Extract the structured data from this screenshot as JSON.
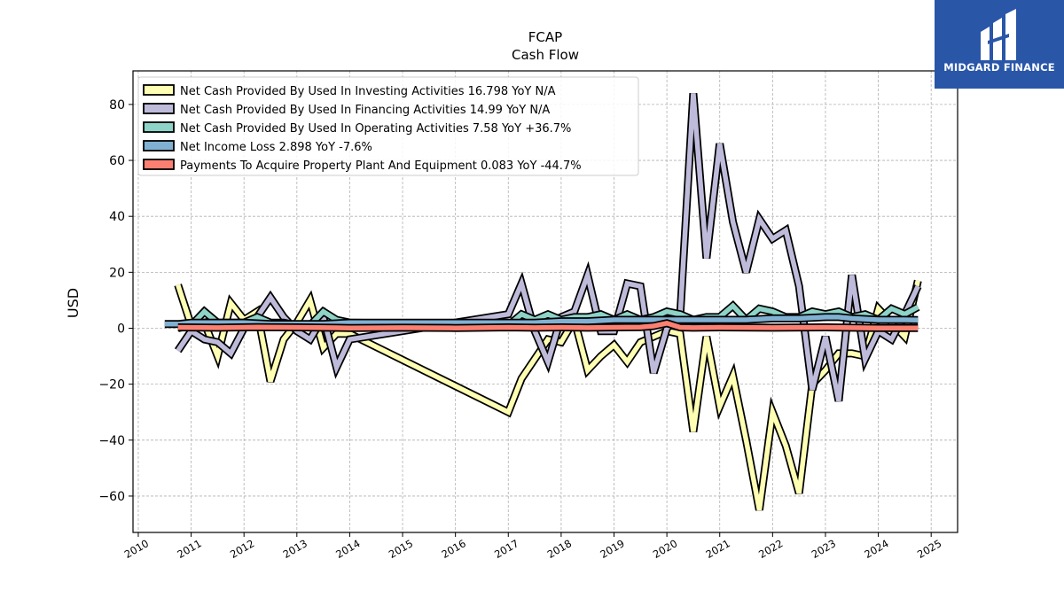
{
  "chart_data": {
    "type": "line",
    "title": "FCAP",
    "subtitle": "Cash Flow",
    "ylabel": "USD",
    "xlabel": "",
    "xlim": [
      2009.9,
      2025.5
    ],
    "ylim": [
      -73,
      92
    ],
    "x_ticks": [
      2010,
      2011,
      2012,
      2013,
      2014,
      2015,
      2016,
      2017,
      2018,
      2019,
      2020,
      2021,
      2022,
      2023,
      2024,
      2025
    ],
    "y_ticks": [
      -60,
      -40,
      -20,
      0,
      20,
      40,
      60,
      80
    ],
    "y_tick_labels": [
      "−60",
      "−40",
      "−20",
      "0",
      "20",
      "40",
      "60",
      "80"
    ],
    "grid": true,
    "legend_position": "top-left",
    "series": [
      {
        "name": "Net Cash Provided By Used In Investing Activities  16.798 YoY N/A",
        "color": "#ffffb3",
        "points": [
          [
            2010.75,
            15.5
          ],
          [
            2011.0,
            1
          ],
          [
            2011.25,
            2
          ],
          [
            2011.5,
            -10
          ],
          [
            2011.75,
            9
          ],
          [
            2012.0,
            3
          ],
          [
            2012.25,
            6
          ],
          [
            2012.5,
            -19
          ],
          [
            2012.75,
            -4
          ],
          [
            2013.0,
            2
          ],
          [
            2013.25,
            10
          ],
          [
            2013.5,
            -7
          ],
          [
            2013.75,
            -2
          ],
          [
            2014.0,
            -2
          ],
          [
            2017.0,
            -30
          ],
          [
            2017.25,
            -18
          ],
          [
            2017.75,
            -4
          ],
          [
            2018.0,
            -5
          ],
          [
            2018.25,
            3
          ],
          [
            2018.5,
            -15
          ],
          [
            2018.75,
            -10
          ],
          [
            2019.0,
            -6
          ],
          [
            2019.25,
            -12
          ],
          [
            2019.5,
            -5
          ],
          [
            2019.75,
            -3
          ],
          [
            2020.0,
            -1
          ],
          [
            2020.25,
            -2
          ],
          [
            2020.5,
            -37
          ],
          [
            2020.75,
            -3
          ],
          [
            2021.0,
            -28
          ],
          [
            2021.25,
            -17
          ],
          [
            2021.5,
            -40
          ],
          [
            2021.75,
            -65
          ],
          [
            2022.0,
            -30
          ],
          [
            2022.25,
            -42
          ],
          [
            2022.5,
            -59
          ],
          [
            2022.75,
            -20
          ],
          [
            2023.0,
            -15
          ],
          [
            2023.25,
            -9
          ],
          [
            2023.5,
            -9
          ],
          [
            2023.75,
            -10
          ],
          [
            2024.0,
            7
          ],
          [
            2024.25,
            2
          ],
          [
            2024.5,
            -3
          ],
          [
            2024.75,
            17
          ]
        ]
      },
      {
        "name": "Net Cash Provided By Used In Financing Activities  14.99 YoY N/A",
        "color": "#bebada",
        "points": [
          [
            2010.75,
            -8
          ],
          [
            2011.0,
            -1
          ],
          [
            2011.25,
            -4
          ],
          [
            2011.5,
            -5
          ],
          [
            2011.75,
            -9
          ],
          [
            2012.0,
            0
          ],
          [
            2012.25,
            4
          ],
          [
            2012.5,
            11
          ],
          [
            2012.75,
            4
          ],
          [
            2013.0,
            -1
          ],
          [
            2013.25,
            -4
          ],
          [
            2013.5,
            4
          ],
          [
            2013.75,
            -14
          ],
          [
            2014.0,
            -4
          ],
          [
            2017.0,
            5
          ],
          [
            2017.25,
            16
          ],
          [
            2017.5,
            -1
          ],
          [
            2017.75,
            -12
          ],
          [
            2018.0,
            4
          ],
          [
            2018.25,
            6
          ],
          [
            2018.5,
            19
          ],
          [
            2018.75,
            -1
          ],
          [
            2019.0,
            -1
          ],
          [
            2019.25,
            16
          ],
          [
            2019.5,
            15
          ],
          [
            2019.75,
            -16
          ],
          [
            2020.0,
            0
          ],
          [
            2020.25,
            4
          ],
          [
            2020.5,
            84
          ],
          [
            2020.75,
            25
          ],
          [
            2021.0,
            66
          ],
          [
            2021.25,
            38
          ],
          [
            2021.5,
            20
          ],
          [
            2021.75,
            39
          ],
          [
            2022.0,
            32
          ],
          [
            2022.25,
            35
          ],
          [
            2022.5,
            15
          ],
          [
            2022.75,
            -22
          ],
          [
            2023.0,
            -3
          ],
          [
            2023.25,
            -26
          ],
          [
            2023.5,
            19
          ],
          [
            2023.75,
            -11
          ],
          [
            2024.0,
            -1
          ],
          [
            2024.25,
            -4
          ],
          [
            2024.5,
            5
          ],
          [
            2024.75,
            15
          ]
        ]
      },
      {
        "name": "Net Cash Provided By Used In Operating Activities  7.58 YoY +36.7%",
        "color": "#8dd3c7",
        "points": [
          [
            2010.75,
            0
          ],
          [
            2011.0,
            1
          ],
          [
            2011.25,
            6
          ],
          [
            2011.5,
            2
          ],
          [
            2011.75,
            2
          ],
          [
            2012.0,
            2
          ],
          [
            2012.25,
            4
          ],
          [
            2012.5,
            2
          ],
          [
            2012.75,
            2
          ],
          [
            2013.0,
            1
          ],
          [
            2013.25,
            1
          ],
          [
            2013.5,
            6
          ],
          [
            2013.75,
            3
          ],
          [
            2014.0,
            2
          ],
          [
            2017.0,
            1
          ],
          [
            2017.25,
            5
          ],
          [
            2017.5,
            3
          ],
          [
            2017.75,
            5
          ],
          [
            2018.0,
            3
          ],
          [
            2018.25,
            4
          ],
          [
            2018.5,
            4
          ],
          [
            2018.75,
            5
          ],
          [
            2019.0,
            3
          ],
          [
            2019.25,
            5
          ],
          [
            2019.5,
            3
          ],
          [
            2019.75,
            4
          ],
          [
            2020.0,
            6
          ],
          [
            2020.25,
            5
          ],
          [
            2020.5,
            3
          ],
          [
            2020.75,
            4
          ],
          [
            2021.0,
            4
          ],
          [
            2021.25,
            8
          ],
          [
            2021.5,
            3
          ],
          [
            2021.75,
            7
          ],
          [
            2022.0,
            6
          ],
          [
            2022.25,
            4
          ],
          [
            2022.5,
            4
          ],
          [
            2022.75,
            6
          ],
          [
            2023.0,
            5
          ],
          [
            2023.25,
            6
          ],
          [
            2023.5,
            4
          ],
          [
            2023.75,
            5
          ],
          [
            2024.0,
            3
          ],
          [
            2024.25,
            7
          ],
          [
            2024.5,
            5
          ],
          [
            2024.75,
            7.58
          ]
        ]
      },
      {
        "name": "Net Income Loss  2.898 YoY -7.6%",
        "color": "#80b1d3",
        "points": [
          [
            2010.5,
            1.5
          ],
          [
            2010.75,
            1.5
          ],
          [
            2011.0,
            2
          ],
          [
            2011.5,
            2
          ],
          [
            2012.0,
            2
          ],
          [
            2012.5,
            1.5
          ],
          [
            2013.0,
            1.5
          ],
          [
            2013.5,
            1.5
          ],
          [
            2014.0,
            2
          ],
          [
            2014.5,
            2
          ],
          [
            2015.0,
            2
          ],
          [
            2015.5,
            2
          ],
          [
            2016.0,
            2
          ],
          [
            2016.5,
            2
          ],
          [
            2017.0,
            2
          ],
          [
            2017.5,
            2
          ],
          [
            2018.0,
            2.5
          ],
          [
            2018.5,
            2.5
          ],
          [
            2019.0,
            3
          ],
          [
            2019.5,
            3
          ],
          [
            2020.0,
            3
          ],
          [
            2020.5,
            3
          ],
          [
            2021.0,
            3
          ],
          [
            2021.5,
            3
          ],
          [
            2022.0,
            3.5
          ],
          [
            2022.5,
            3.5
          ],
          [
            2023.0,
            4
          ],
          [
            2023.25,
            4
          ],
          [
            2023.5,
            3.5
          ],
          [
            2024.0,
            3
          ],
          [
            2024.5,
            3
          ],
          [
            2024.75,
            2.898
          ]
        ]
      },
      {
        "name": "Payments To Acquire Property Plant And Equipment  0.083 YoY -44.7%",
        "color": "#fb8072",
        "points": [
          [
            2010.75,
            0.3
          ],
          [
            2011.5,
            0.2
          ],
          [
            2012.25,
            0.4
          ],
          [
            2013.0,
            0.3
          ],
          [
            2014.0,
            0.1
          ],
          [
            2015.0,
            0.2
          ],
          [
            2016.0,
            0.1
          ],
          [
            2017.0,
            0.3
          ],
          [
            2017.5,
            0.2
          ],
          [
            2018.0,
            0.3
          ],
          [
            2018.5,
            0.2
          ],
          [
            2019.0,
            0.3
          ],
          [
            2019.5,
            0.4
          ],
          [
            2019.75,
            0.8
          ],
          [
            2020.0,
            1.8
          ],
          [
            2020.25,
            0.3
          ],
          [
            2020.5,
            0.2
          ],
          [
            2021.0,
            0.3
          ],
          [
            2022.0,
            0.2
          ],
          [
            2023.0,
            0.3
          ],
          [
            2024.0,
            0.1
          ],
          [
            2024.75,
            0.083
          ]
        ]
      }
    ]
  },
  "logo": {
    "text": "MIDGARD FINANCE",
    "background": "#2a56a8"
  }
}
